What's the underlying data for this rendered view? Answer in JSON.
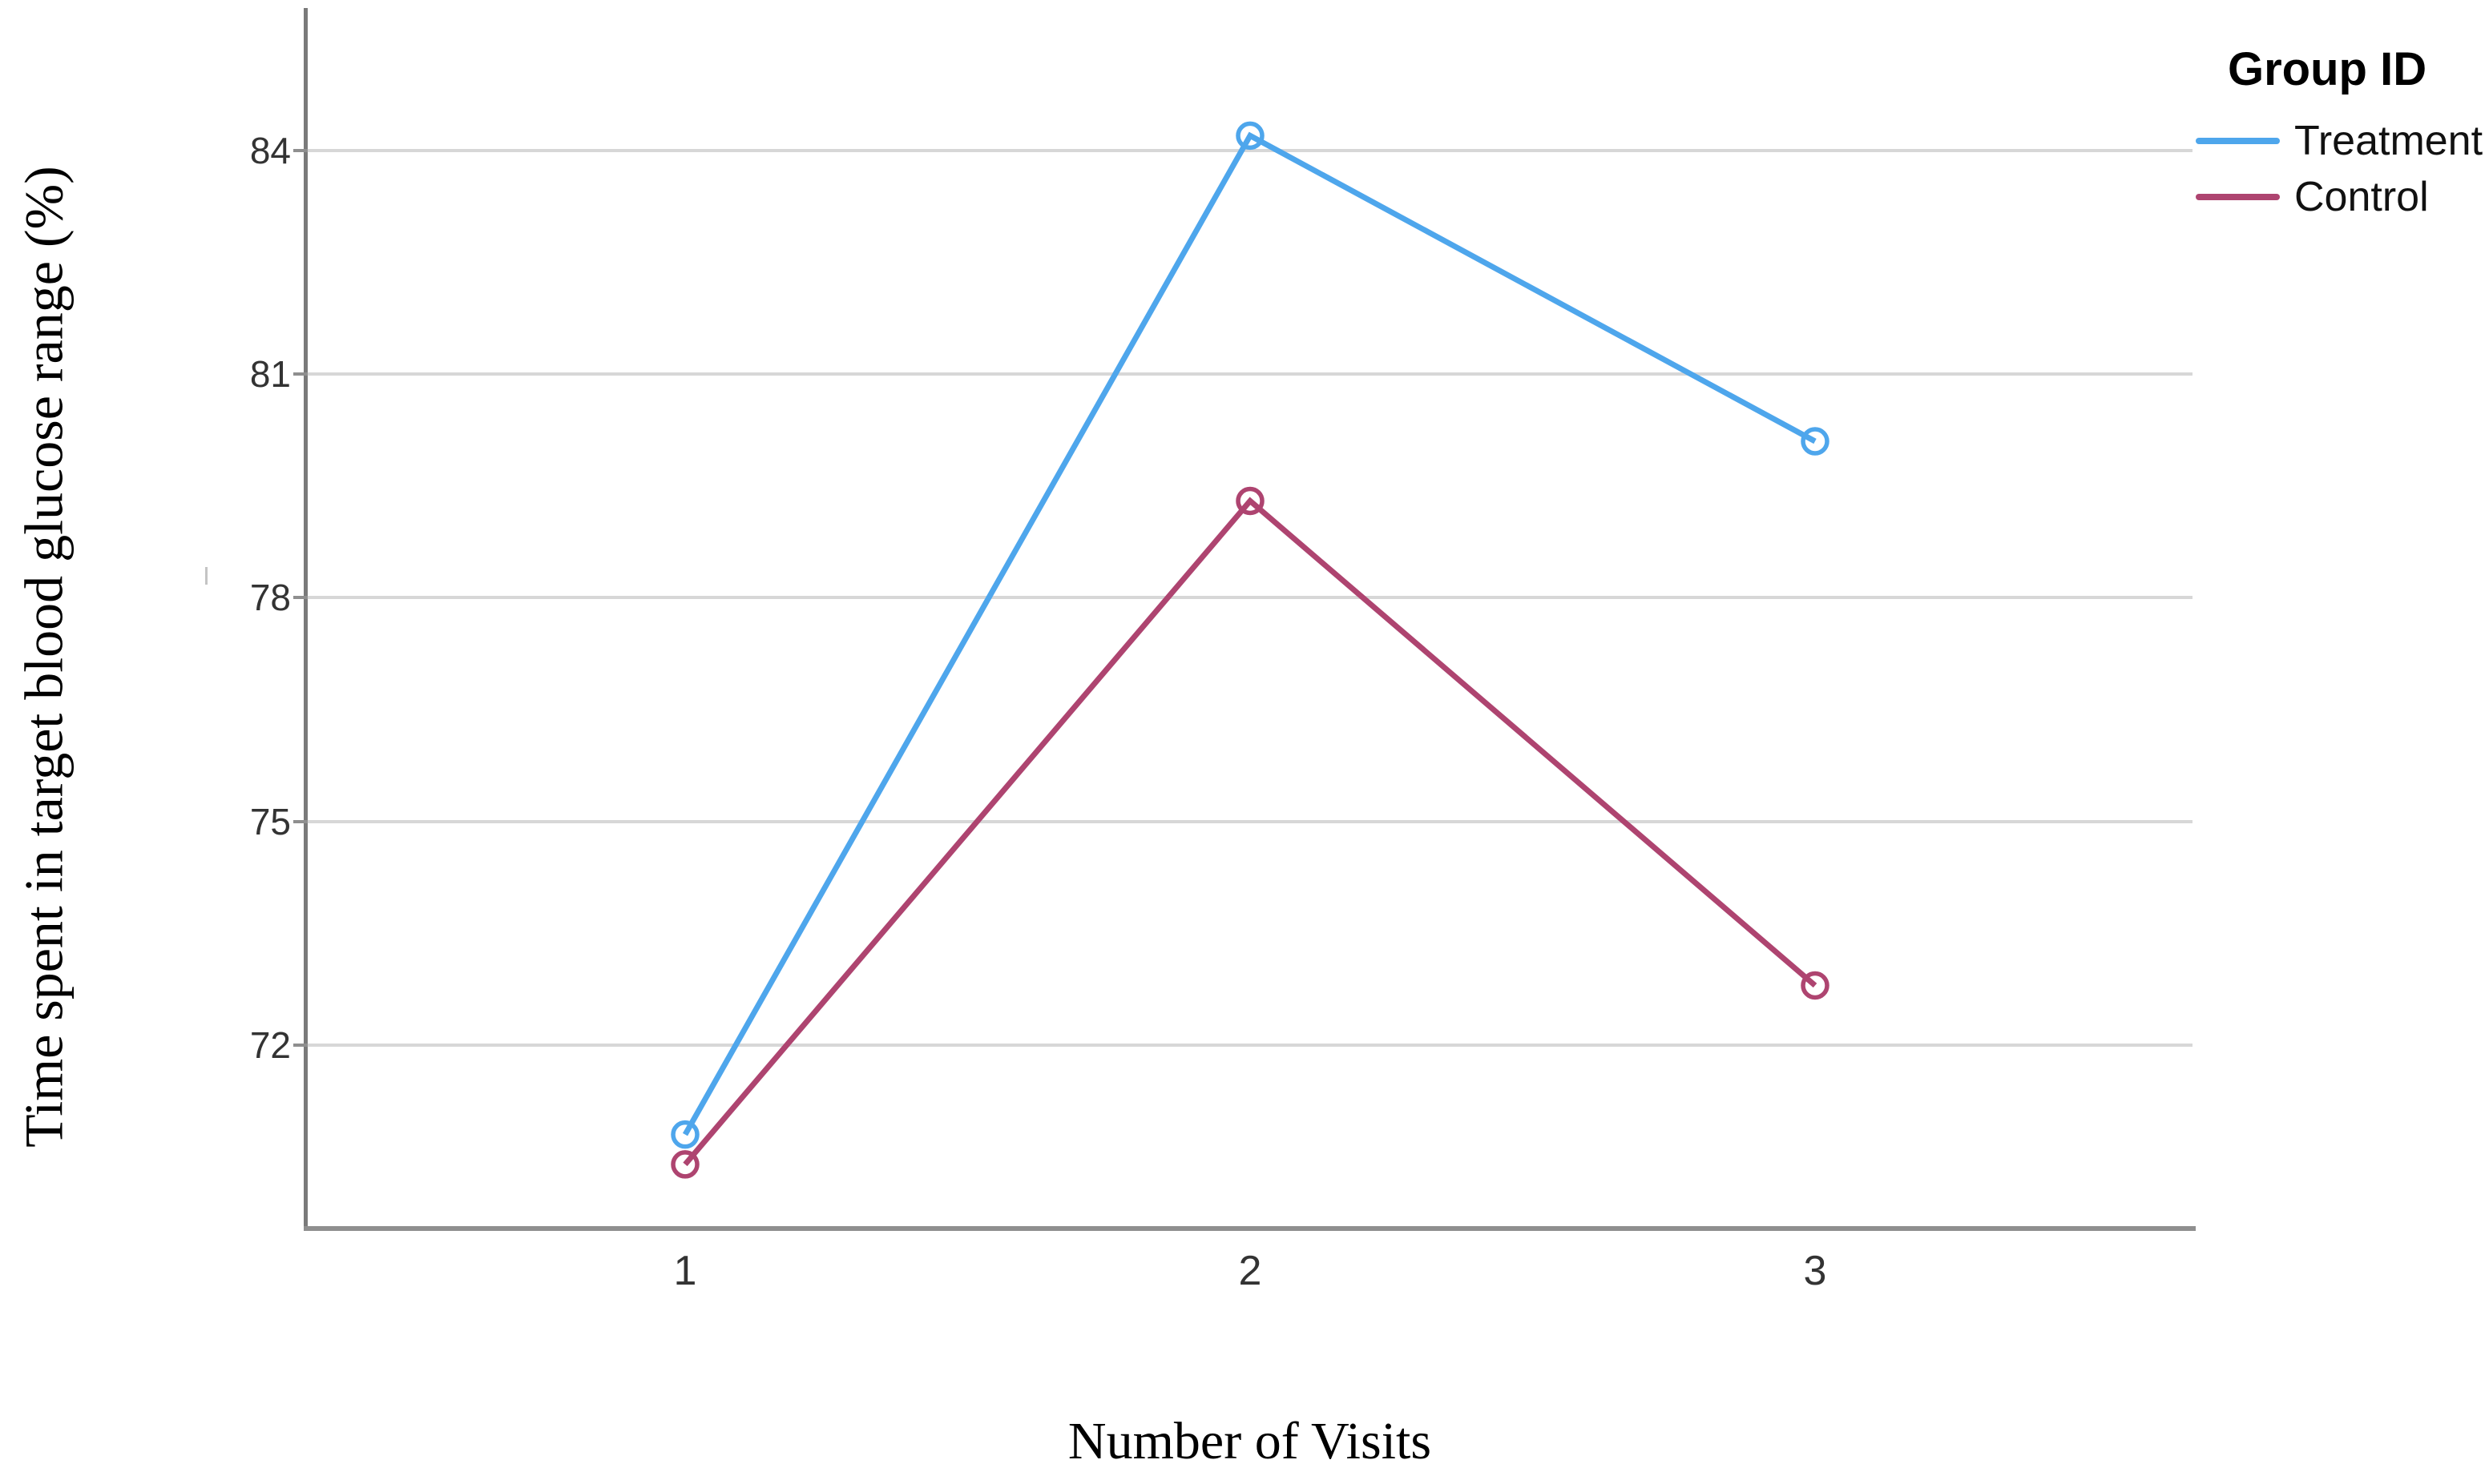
{
  "chart_data": {
    "type": "line",
    "title": "",
    "xlabel": "Number of Visits",
    "ylabel": "Time spent in target blood glucose range (%)",
    "x": [
      1,
      2,
      3
    ],
    "xtick_labels": [
      "1",
      "2",
      "3"
    ],
    "yticks": [
      72,
      75,
      78,
      81,
      84
    ],
    "ylim": [
      69.6,
      85.9
    ],
    "grid": "horizontal",
    "marker": "open-circle",
    "series": [
      {
        "name": "Treatment",
        "color": "#4EA6EC",
        "values": [
          70.8,
          84.2,
          80.1
        ]
      },
      {
        "name": "Control",
        "color": "#AE4470",
        "values": [
          70.4,
          79.3,
          72.8
        ]
      }
    ],
    "legend": {
      "title": "Group ID",
      "position": "top-right",
      "entries": [
        {
          "label": "Treatment",
          "color": "#4EA6EC"
        },
        {
          "label": "Control",
          "color": "#AE4470"
        }
      ]
    }
  }
}
